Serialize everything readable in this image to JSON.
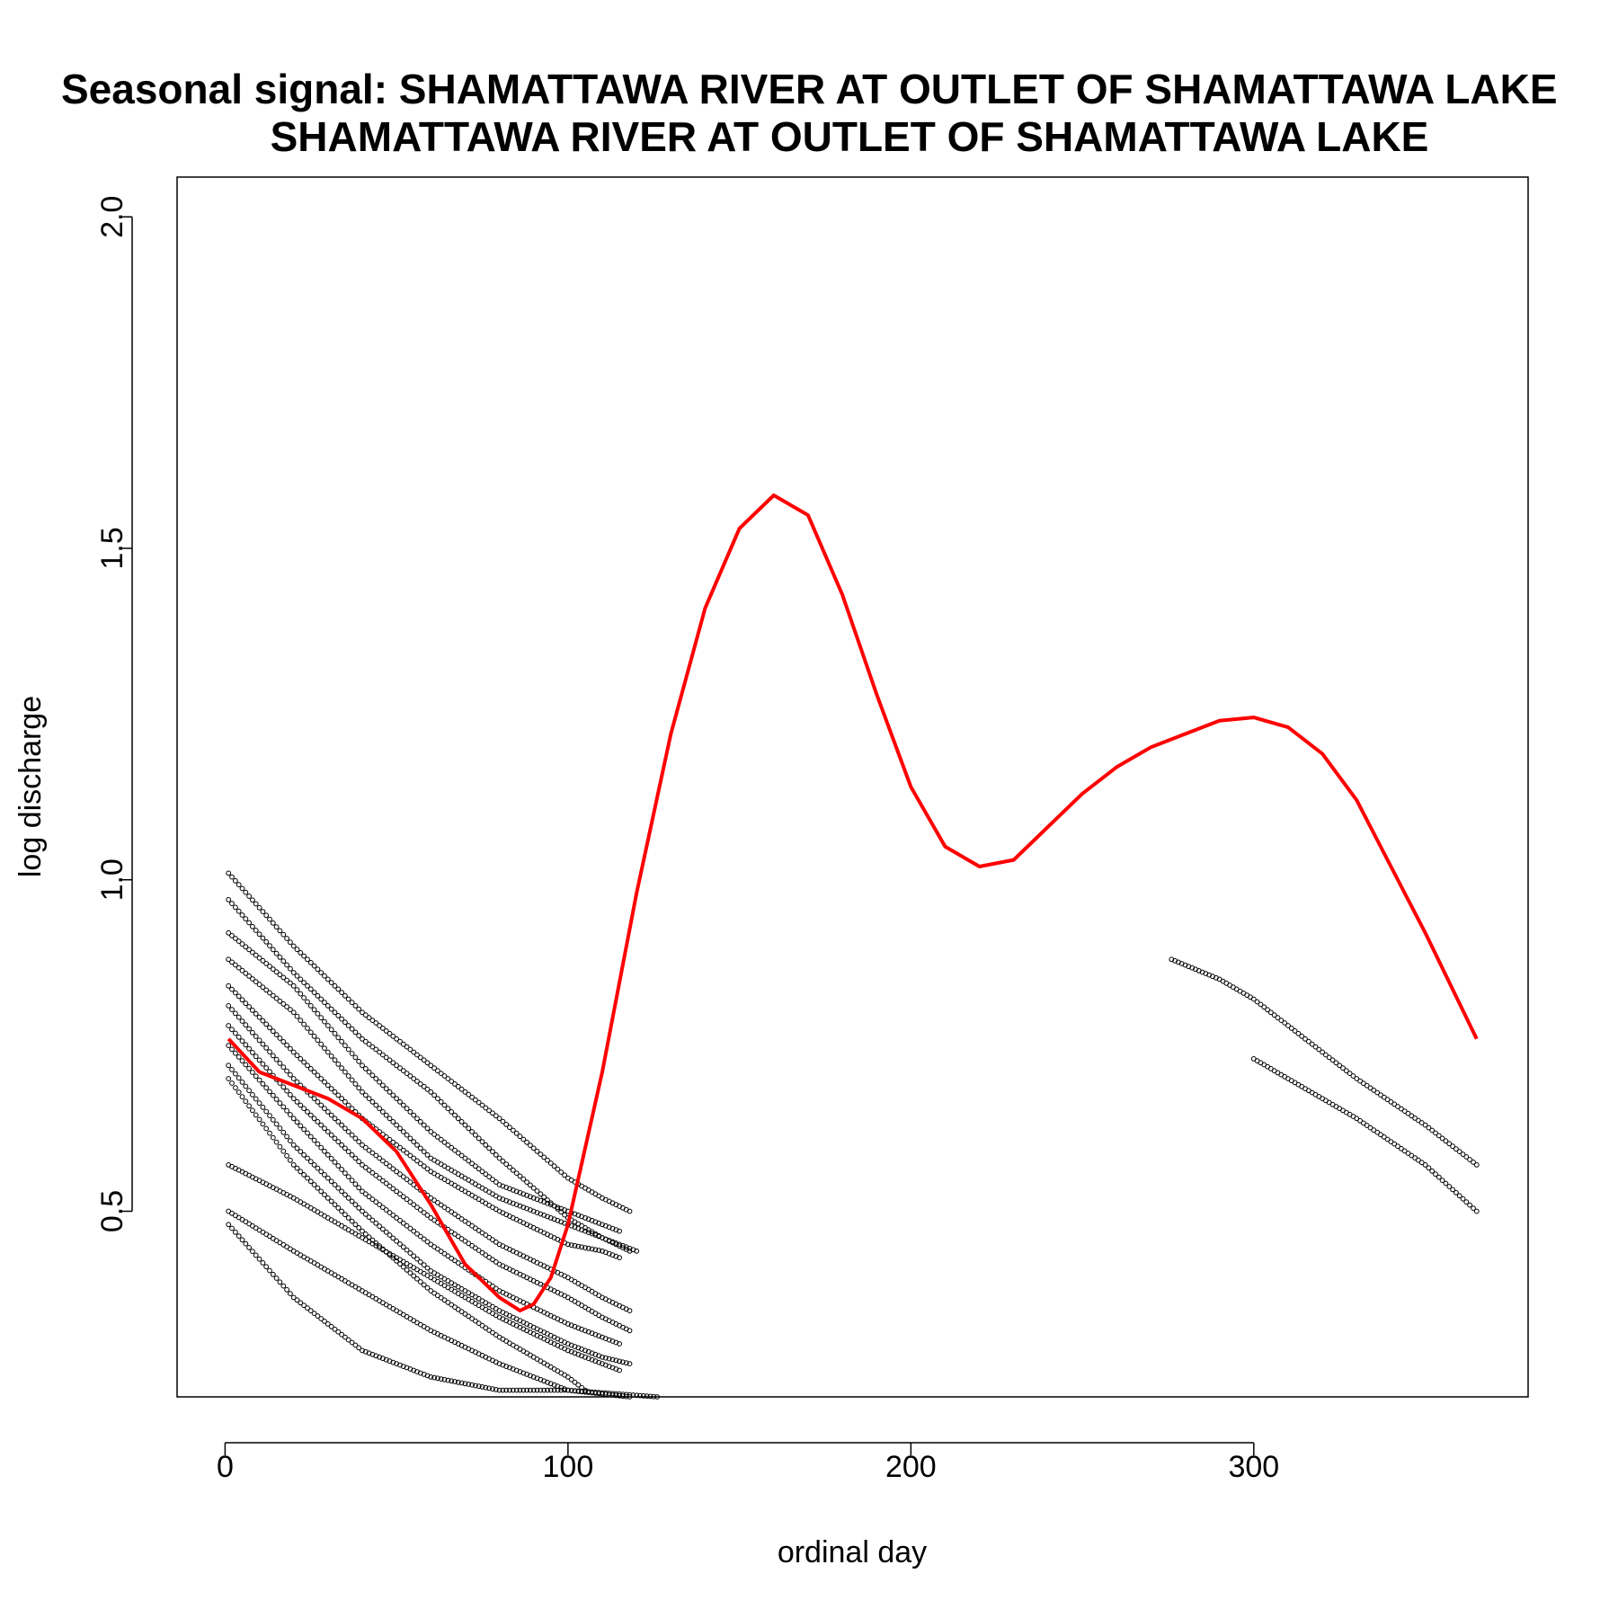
{
  "chart_data": {
    "type": "scatter",
    "title_line1": "Seasonal signal: SHAMATTAWA RIVER AT OUTLET OF SHAMATTAWA LAKE",
    "title_line2": "SHAMATTAWA RIVER AT OUTLET OF SHAMATTAWA LAKE",
    "xlabel": "ordinal day",
    "ylabel": "log discharge",
    "xlim": [
      -14,
      380
    ],
    "ylim": [
      0.22,
      2.06
    ],
    "x_ticks": [
      0,
      100,
      200,
      300
    ],
    "y_ticks": [
      0.5,
      1.0,
      1.5,
      2.0
    ],
    "x_tick_labels": [
      "0",
      "100",
      "200",
      "300"
    ],
    "y_tick_labels": [
      "0.5",
      "1.0",
      "1.5",
      "2.0"
    ],
    "grid": false,
    "legend": "none",
    "point_color": "#000000",
    "fit_color": "#ff0000",
    "series": [
      {
        "x": [
          1,
          20,
          40,
          60,
          80,
          100,
          110,
          118
        ],
        "y": [
          1.01,
          0.9,
          0.8,
          0.72,
          0.64,
          0.55,
          0.52,
          0.5
        ]
      },
      {
        "x": [
          1,
          20,
          40,
          60,
          80,
          100,
          110,
          118
        ],
        "y": [
          0.97,
          0.86,
          0.76,
          0.68,
          0.58,
          0.49,
          0.46,
          0.44
        ]
      },
      {
        "x": [
          1,
          20,
          40,
          60,
          80,
          100,
          110,
          115
        ],
        "y": [
          0.92,
          0.84,
          0.72,
          0.62,
          0.54,
          0.5,
          0.48,
          0.47
        ]
      },
      {
        "x": [
          1,
          20,
          40,
          60,
          80,
          100,
          110,
          120
        ],
        "y": [
          0.88,
          0.8,
          0.68,
          0.58,
          0.52,
          0.48,
          0.46,
          0.44
        ]
      },
      {
        "x": [
          1,
          20,
          40,
          60,
          80,
          100,
          110,
          115
        ],
        "y": [
          0.84,
          0.74,
          0.64,
          0.56,
          0.5,
          0.45,
          0.44,
          0.43
        ]
      },
      {
        "x": [
          1,
          20,
          40,
          60,
          80,
          100,
          110,
          118
        ],
        "y": [
          0.81,
          0.7,
          0.6,
          0.52,
          0.45,
          0.4,
          0.37,
          0.35
        ]
      },
      {
        "x": [
          1,
          20,
          40,
          60,
          80,
          100,
          110,
          118
        ],
        "y": [
          0.78,
          0.67,
          0.57,
          0.49,
          0.42,
          0.37,
          0.34,
          0.32
        ]
      },
      {
        "x": [
          1,
          20,
          40,
          60,
          80,
          100,
          110,
          115
        ],
        "y": [
          0.75,
          0.64,
          0.53,
          0.45,
          0.38,
          0.33,
          0.31,
          0.3
        ]
      },
      {
        "x": [
          1,
          20,
          40,
          60,
          80,
          100,
          110,
          118
        ],
        "y": [
          0.72,
          0.6,
          0.5,
          0.41,
          0.35,
          0.3,
          0.28,
          0.27
        ]
      },
      {
        "x": [
          1,
          20,
          40,
          60,
          80,
          100,
          105
        ],
        "y": [
          0.7,
          0.57,
          0.47,
          0.38,
          0.31,
          0.25,
          0.23
        ]
      },
      {
        "x": [
          1,
          20,
          40,
          60,
          80,
          100,
          115
        ],
        "y": [
          0.57,
          0.52,
          0.46,
          0.4,
          0.34,
          0.29,
          0.26
        ]
      },
      {
        "x": [
          1,
          20,
          40,
          60,
          80,
          100,
          118
        ],
        "y": [
          0.5,
          0.44,
          0.38,
          0.32,
          0.27,
          0.23,
          0.22
        ]
      },
      {
        "x": [
          1,
          20,
          40,
          60,
          80,
          100,
          126
        ],
        "y": [
          0.48,
          0.37,
          0.29,
          0.25,
          0.23,
          0.23,
          0.22
        ]
      },
      {
        "x": [
          276,
          290,
          300,
          310,
          330,
          350,
          365
        ],
        "y": [
          0.88,
          0.85,
          0.82,
          0.78,
          0.7,
          0.63,
          0.57
        ]
      },
      {
        "x": [
          300,
          310,
          330,
          350,
          365
        ],
        "y": [
          0.73,
          0.7,
          0.64,
          0.57,
          0.5
        ]
      }
    ],
    "fit_curve": {
      "x": [
        1,
        10,
        20,
        30,
        40,
        50,
        60,
        70,
        80,
        86,
        90,
        95,
        100,
        110,
        120,
        130,
        140,
        150,
        160,
        170,
        180,
        190,
        200,
        210,
        220,
        230,
        240,
        250,
        260,
        270,
        280,
        290,
        300,
        310,
        320,
        330,
        340,
        350,
        365
      ],
      "y": [
        0.76,
        0.71,
        0.69,
        0.67,
        0.64,
        0.59,
        0.51,
        0.42,
        0.37,
        0.35,
        0.36,
        0.4,
        0.48,
        0.71,
        0.98,
        1.22,
        1.41,
        1.53,
        1.58,
        1.55,
        1.43,
        1.28,
        1.14,
        1.05,
        1.02,
        1.03,
        1.08,
        1.13,
        1.17,
        1.2,
        1.22,
        1.24,
        1.245,
        1.23,
        1.19,
        1.12,
        1.02,
        0.92,
        0.76
      ]
    }
  }
}
